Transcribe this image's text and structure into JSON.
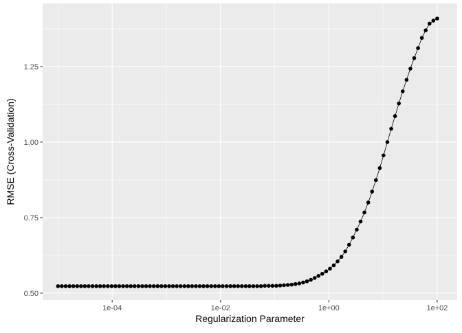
{
  "chart_data": {
    "type": "line",
    "x_label": "Regularization Parameter",
    "y_label": "RMSE (Cross-Validation)",
    "x_log": true,
    "grid": true,
    "color": "#000000",
    "xlim": [
      5.2e-06,
      234
    ],
    "ylim": [
      0.477,
      1.459
    ],
    "xticks": [
      {
        "value": 0.0001,
        "label": "1e-04"
      },
      {
        "value": 0.01,
        "label": "1e-02"
      },
      {
        "value": 1,
        "label": "1e+00"
      },
      {
        "value": 100,
        "label": "1e+02"
      }
    ],
    "xminor": [
      1e-05,
      0.001,
      0.1,
      10
    ],
    "yticks": [
      {
        "value": 0.5,
        "label": "0.50"
      },
      {
        "value": 0.75,
        "label": "0.75"
      },
      {
        "value": 1,
        "label": "1.00"
      },
      {
        "value": 1.25,
        "label": "1.25"
      }
    ],
    "yminor": [
      0.625,
      0.875,
      1.125,
      1.375
    ],
    "x": [
      1e-05,
      1.177e-05,
      1.385e-05,
      1.63e-05,
      1.918e-05,
      2.257e-05,
      2.656e-05,
      3.126e-05,
      3.679e-05,
      4.329e-05,
      5.095e-05,
      5.995e-05,
      7.055e-05,
      8.302e-05,
      9.77e-05,
      0.000115,
      0.0001353,
      0.0001592,
      0.0001874,
      0.0002205,
      0.0002595,
      0.0003054,
      0.0003594,
      0.0004229,
      0.0004977,
      0.0005857,
      0.0006893,
      0.0008111,
      0.0009545,
      0.001123,
      0.001322,
      0.001556,
      0.001831,
      0.002154,
      0.002535,
      0.002983,
      0.003511,
      0.004132,
      0.004862,
      0.005722,
      0.006734,
      0.007925,
      0.009326,
      0.01097,
      0.01292,
      0.0152,
      0.01789,
      0.02105,
      0.02477,
      0.02915,
      0.0343,
      0.04037,
      0.04751,
      0.05591,
      0.06579,
      0.07743,
      0.09112,
      0.1072,
      0.1262,
      0.1485,
      0.1748,
      0.2057,
      0.242,
      0.2848,
      0.3352,
      0.3944,
      0.4642,
      0.5462,
      0.6428,
      0.7565,
      0.8902,
      1.048,
      1.233,
      1.451,
      1.707,
      2.009,
      2.364,
      2.783,
      3.275,
      3.854,
      4.535,
      5.337,
      6.281,
      7.391,
      8.698,
      10.23,
      12.04,
      14.17,
      16.68,
      19.63,
      23.1,
      27.19,
      31.99,
      37.65,
      44.31,
      52.14,
      61.36,
      72.21,
      84.98,
      100
    ],
    "values": [
      0.523,
      0.523,
      0.523,
      0.523,
      0.523,
      0.523,
      0.523,
      0.523,
      0.523,
      0.523,
      0.523,
      0.523,
      0.523,
      0.523,
      0.523,
      0.523,
      0.523,
      0.523,
      0.523,
      0.523,
      0.523,
      0.523,
      0.523,
      0.523,
      0.523,
      0.523,
      0.523,
      0.523,
      0.523,
      0.523,
      0.523,
      0.523,
      0.523,
      0.523,
      0.523,
      0.523,
      0.523,
      0.523,
      0.523,
      0.523,
      0.523,
      0.523,
      0.523,
      0.523,
      0.523,
      0.523,
      0.523,
      0.523,
      0.523,
      0.523,
      0.523,
      0.523,
      0.523,
      0.523,
      0.524,
      0.524,
      0.524,
      0.524,
      0.525,
      0.526,
      0.527,
      0.528,
      0.53,
      0.532,
      0.535,
      0.539,
      0.544,
      0.55,
      0.557,
      0.564,
      0.572,
      0.581,
      0.592,
      0.605,
      0.62,
      0.638,
      0.66,
      0.684,
      0.71,
      0.737,
      0.767,
      0.8,
      0.836,
      0.874,
      0.914,
      0.956,
      1.0,
      1.044,
      1.086,
      1.128,
      1.168,
      1.206,
      1.243,
      1.278,
      1.311,
      1.345,
      1.37,
      1.392,
      1.402,
      1.409
    ]
  }
}
